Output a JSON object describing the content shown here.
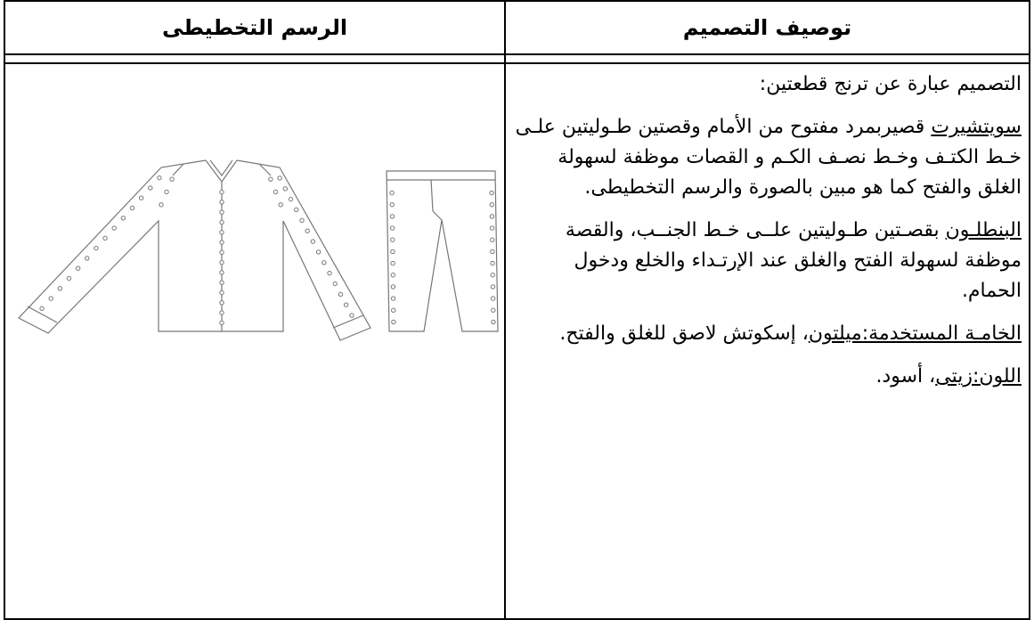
{
  "table": {
    "headers": [
      "توصيف التصميم",
      "الرسم التخطيطى"
    ],
    "paragraphs": [
      {
        "text": "التصميم عبارة عن ترنج قطعتين:"
      },
      {
        "label": "سويتشيرت",
        "text": " قصيربمرد مفتوح من الأمام وقصتين طـوليتين علـى خـط الكتـف وخـط نصـف الكـم و القصات موظفة لسهولة الغلق والفتح كما هو مبين بالصورة والرسم التخطيطى."
      },
      {
        "label": "البنطلـون",
        "text": " بقصـتين طـوليتين علــى خـط الجنــب، والقصة موظفة لسهولة الفتح والغلق عند الإرتـداء والخلع ودخول الحمام."
      },
      {
        "label": "الخامـة المستخدمة:ميلتون",
        "text": "، إسكوتش لاصق للغلق والفتح."
      },
      {
        "label": "اللون:زيتى",
        "text": "، أسود."
      }
    ]
  }
}
